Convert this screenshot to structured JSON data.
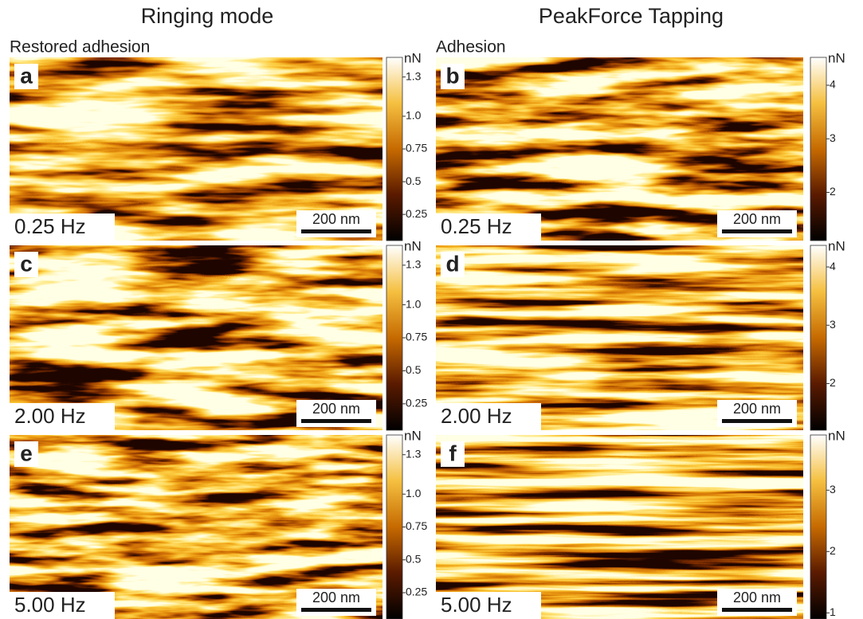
{
  "columns": [
    {
      "title": "Ringing mode",
      "subtitle": "Restored adhesion"
    },
    {
      "title": "PeakForce Tapping",
      "subtitle": "Adhesion"
    }
  ],
  "panels": [
    {
      "letter": "a",
      "frequency": "0.25 Hz",
      "scale_bar": "200 nm",
      "colorbar": {
        "unit": "nN",
        "range": [
          0.05,
          1.45
        ],
        "ticks": [
          1.3,
          {
            "value": 1.0,
            "label": "1.0"
          },
          0.75,
          0.5,
          0.25
        ]
      }
    },
    {
      "letter": "b",
      "frequency": "0.25 Hz",
      "scale_bar": "200 nm",
      "colorbar": {
        "unit": "nN",
        "range": [
          1.1,
          4.52
        ],
        "ticks": [
          4,
          3,
          2
        ]
      }
    },
    {
      "letter": "c",
      "frequency": "2.00 Hz",
      "scale_bar": "200 nm",
      "colorbar": {
        "unit": "nN",
        "range": [
          0.05,
          1.45
        ],
        "ticks": [
          1.3,
          {
            "value": 1.0,
            "label": "1.0"
          },
          0.75,
          0.5,
          0.25
        ]
      }
    },
    {
      "letter": "d",
      "frequency": "2.00 Hz",
      "scale_bar": "200 nm",
      "colorbar": {
        "unit": "nN",
        "range": [
          1.2,
          4.37
        ],
        "ticks": [
          4,
          3,
          2
        ]
      }
    },
    {
      "letter": "e",
      "frequency": "5.00 Hz",
      "scale_bar": "200 nm",
      "colorbar": {
        "unit": "nN",
        "range": [
          0.05,
          1.45
        ],
        "ticks": [
          1.3,
          {
            "value": 1.0,
            "label": "1.0"
          },
          0.75,
          0.5,
          0.25
        ]
      }
    },
    {
      "letter": "f",
      "frequency": "5.00 Hz",
      "scale_bar": "200 nm",
      "colorbar": {
        "unit": "nN",
        "range": [
          0.9,
          3.9
        ],
        "ticks": [
          3,
          2,
          1
        ]
      }
    }
  ]
}
